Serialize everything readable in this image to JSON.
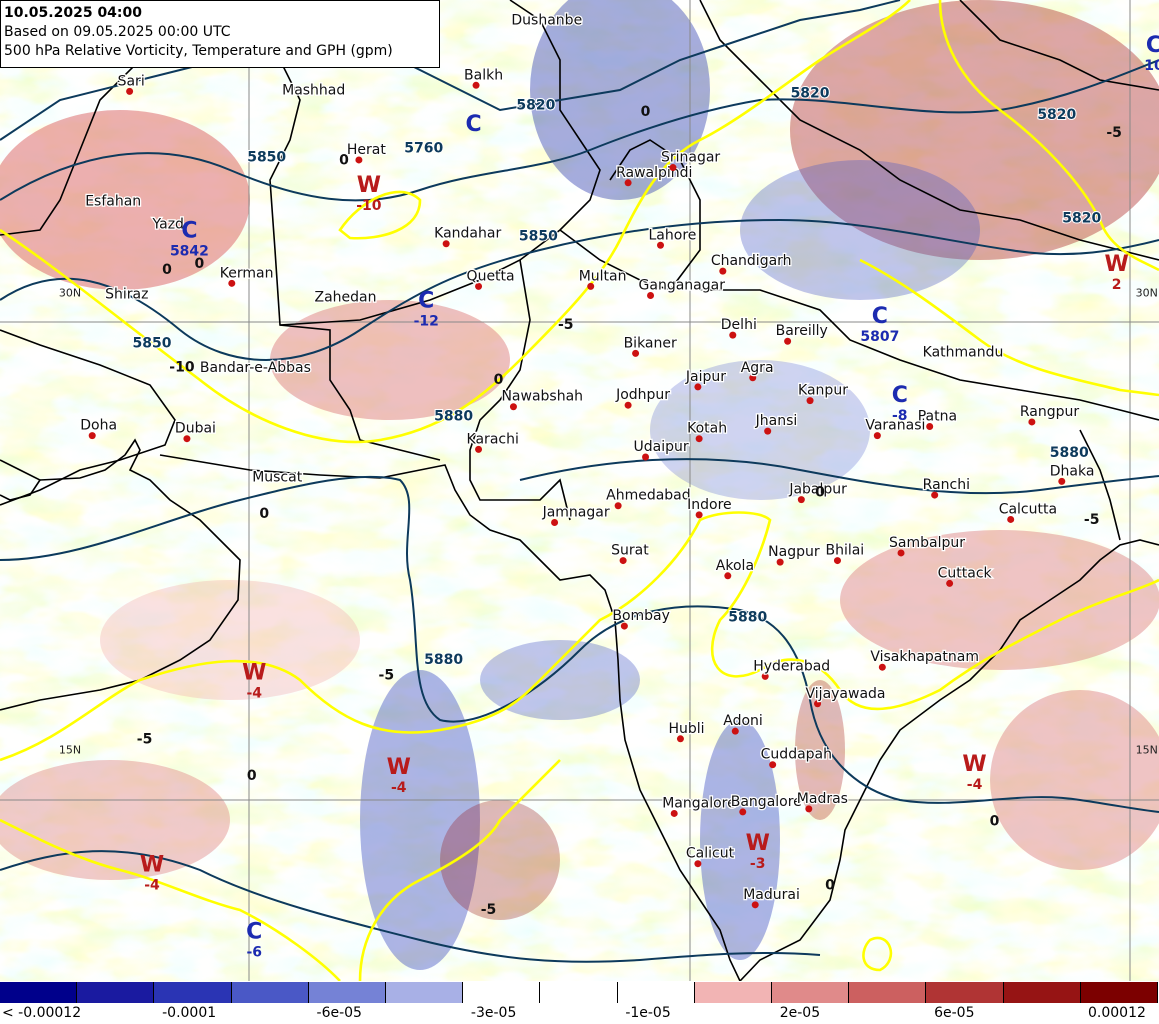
{
  "header": {
    "title": "10.05.2025 04:00",
    "based_on": "Based on 09.05.2025 00:00 UTC",
    "product": "500 hPa Relative Vorticity, Temperature and GPH (gpm)"
  },
  "colors": {
    "land_border": "#000000",
    "gph_contour": "#0d3a5c",
    "temperature_contour": "#ffff00",
    "city_marker": "#cc1111",
    "high_pressure_label": "#b81b1b",
    "low_pressure_label": "#1c2bb0",
    "grid_line": "#888888"
  },
  "cities": [
    {
      "name": "Dushanbe",
      "lon": 68.8,
      "lat": 38.6,
      "dot": false
    },
    {
      "name": "Sari",
      "lon": 53.0,
      "lat": 36.6,
      "dot": true
    },
    {
      "name": "Mashhad",
      "lon": 59.6,
      "lat": 36.3,
      "dot": false
    },
    {
      "name": "Balkh",
      "lon": 66.9,
      "lat": 36.8,
      "dot": true
    },
    {
      "name": "Herat",
      "lon": 62.2,
      "lat": 34.35,
      "dot": true
    },
    {
      "name": "Esfahan",
      "lon": 51.7,
      "lat": 32.65,
      "dot": false
    },
    {
      "name": "Yazd",
      "lon": 54.4,
      "lat": 31.9,
      "dot": false
    },
    {
      "name": "Kandahar",
      "lon": 65.7,
      "lat": 31.6,
      "dot": true
    },
    {
      "name": "Quetta",
      "lon": 67.0,
      "lat": 30.2,
      "dot": true
    },
    {
      "name": "Kerman",
      "lon": 57.1,
      "lat": 30.3,
      "dot": true
    },
    {
      "name": "Zahedan",
      "lon": 60.9,
      "lat": 29.5,
      "dot": false
    },
    {
      "name": "Shiraz",
      "lon": 52.5,
      "lat": 29.6,
      "dot": false
    },
    {
      "name": "Rawalpindi",
      "lon": 73.0,
      "lat": 33.6,
      "dot": true
    },
    {
      "name": "Srinagar",
      "lon": 74.8,
      "lat": 34.1,
      "dot": true
    },
    {
      "name": "Lahore",
      "lon": 74.3,
      "lat": 31.55,
      "dot": true
    },
    {
      "name": "Chandigarh",
      "lon": 76.8,
      "lat": 30.7,
      "dot": true
    },
    {
      "name": "Multan",
      "lon": 71.5,
      "lat": 30.2,
      "dot": true
    },
    {
      "name": "Ganganagar",
      "lon": 73.9,
      "lat": 29.9,
      "dot": true
    },
    {
      "name": "Bikaner",
      "lon": 73.3,
      "lat": 28.0,
      "dot": true
    },
    {
      "name": "Delhi",
      "lon": 77.2,
      "lat": 28.6,
      "dot": true
    },
    {
      "name": "Bareilly",
      "lon": 79.4,
      "lat": 28.4,
      "dot": true
    },
    {
      "name": "Kathmandu",
      "lon": 85.3,
      "lat": 27.7,
      "dot": false
    },
    {
      "name": "Bandar-e-Abbas",
      "lon": 56.3,
      "lat": 27.2,
      "dot": false
    },
    {
      "name": "Jaipur",
      "lon": 75.8,
      "lat": 26.9,
      "dot": true
    },
    {
      "name": "Agra",
      "lon": 78.0,
      "lat": 27.2,
      "dot": true
    },
    {
      "name": "Kanpur",
      "lon": 80.3,
      "lat": 26.45,
      "dot": true
    },
    {
      "name": "Nawabshah",
      "lon": 68.4,
      "lat": 26.25,
      "dot": true
    },
    {
      "name": "Jodhpur",
      "lon": 73.0,
      "lat": 26.3,
      "dot": true
    },
    {
      "name": "Doha",
      "lon": 51.5,
      "lat": 25.3,
      "dot": true
    },
    {
      "name": "Dubai",
      "lon": 55.3,
      "lat": 25.2,
      "dot": true
    },
    {
      "name": "Patna",
      "lon": 85.1,
      "lat": 25.6,
      "dot": true
    },
    {
      "name": "Rangpur",
      "lon": 89.2,
      "lat": 25.75,
      "dot": true
    },
    {
      "name": "Jhansi",
      "lon": 78.6,
      "lat": 25.45,
      "dot": true
    },
    {
      "name": "Kotah",
      "lon": 75.85,
      "lat": 25.2,
      "dot": true
    },
    {
      "name": "Varanasi",
      "lon": 83.0,
      "lat": 25.3,
      "dot": true
    },
    {
      "name": "Karachi",
      "lon": 67.0,
      "lat": 24.85,
      "dot": true
    },
    {
      "name": "Udaipur",
      "lon": 73.7,
      "lat": 24.6,
      "dot": true
    },
    {
      "name": "Dhaka",
      "lon": 90.4,
      "lat": 23.8,
      "dot": true
    },
    {
      "name": "Muscat",
      "lon": 58.4,
      "lat": 23.6,
      "dot": false
    },
    {
      "name": "Jabalpur",
      "lon": 79.95,
      "lat": 23.2,
      "dot": true
    },
    {
      "name": "Ranchi",
      "lon": 85.3,
      "lat": 23.35,
      "dot": true
    },
    {
      "name": "Ahmedabad",
      "lon": 72.6,
      "lat": 23.0,
      "dot": true
    },
    {
      "name": "Indore",
      "lon": 75.85,
      "lat": 22.7,
      "dot": true
    },
    {
      "name": "Calcutta",
      "lon": 88.35,
      "lat": 22.55,
      "dot": true
    },
    {
      "name": "Jamnagar",
      "lon": 70.05,
      "lat": 22.45,
      "dot": true
    },
    {
      "name": "Sambalpur",
      "lon": 83.95,
      "lat": 21.45,
      "dot": true
    },
    {
      "name": "Surat",
      "lon": 72.8,
      "lat": 21.2,
      "dot": true
    },
    {
      "name": "Nagpur",
      "lon": 79.1,
      "lat": 21.15,
      "dot": true
    },
    {
      "name": "Bhilai",
      "lon": 81.4,
      "lat": 21.2,
      "dot": true
    },
    {
      "name": "Akola",
      "lon": 77.0,
      "lat": 20.7,
      "dot": true
    },
    {
      "name": "Cuttack",
      "lon": 85.9,
      "lat": 20.45,
      "dot": true
    },
    {
      "name": "Bombay",
      "lon": 72.85,
      "lat": 19.05,
      "dot": true
    },
    {
      "name": "Hyderabad",
      "lon": 78.5,
      "lat": 17.4,
      "dot": true
    },
    {
      "name": "Visakhapatnam",
      "lon": 83.2,
      "lat": 17.7,
      "dot": true
    },
    {
      "name": "Vijayawada",
      "lon": 80.6,
      "lat": 16.5,
      "dot": true
    },
    {
      "name": "Adoni",
      "lon": 77.3,
      "lat": 15.6,
      "dot": true
    },
    {
      "name": "Hubli",
      "lon": 75.1,
      "lat": 15.35,
      "dot": true
    },
    {
      "name": "Cuddapah",
      "lon": 78.8,
      "lat": 14.5,
      "dot": true
    },
    {
      "name": "Mangalore",
      "lon": 74.85,
      "lat": 12.9,
      "dot": true
    },
    {
      "name": "Bangalore",
      "lon": 77.6,
      "lat": 12.95,
      "dot": true
    },
    {
      "name": "Madras",
      "lon": 80.25,
      "lat": 13.05,
      "dot": true
    },
    {
      "name": "Calicut",
      "lon": 75.8,
      "lat": 11.25,
      "dot": true
    },
    {
      "name": "Madurai",
      "lon": 78.1,
      "lat": 9.9,
      "dot": true
    }
  ],
  "grid_labels": [
    {
      "text": "30N",
      "lon": 50.0,
      "lat": 30.0
    },
    {
      "text": "15N",
      "lon": 50.0,
      "lat": 15.0
    },
    {
      "text": "30N",
      "lon": 93.2,
      "lat": 30.0
    },
    {
      "text": "15N",
      "lon": 93.2,
      "lat": 15.0
    }
  ],
  "pressure_centers": [
    {
      "symbol": "C",
      "value": "",
      "lon": 66.8,
      "lat": 35.3,
      "kind": "low"
    },
    {
      "symbol": "C",
      "value": "5842",
      "lon": 55.4,
      "lat": 31.8,
      "kind": "low"
    },
    {
      "symbol": "W",
      "value": "-10",
      "lon": 62.6,
      "lat": 33.3,
      "kind": "high"
    },
    {
      "symbol": "C",
      "value": "-12",
      "lon": 64.9,
      "lat": 29.5,
      "kind": "low"
    },
    {
      "symbol": "C",
      "value": "-8",
      "lon": 83.9,
      "lat": 26.4,
      "kind": "low"
    },
    {
      "symbol": "C",
      "value": "5807",
      "lon": 83.1,
      "lat": 29.0,
      "kind": "low"
    },
    {
      "symbol": "W",
      "value": "2",
      "lon": 92.6,
      "lat": 30.7,
      "kind": "high"
    },
    {
      "symbol": "C",
      "value": "10",
      "lon": 94.1,
      "lat": 37.9,
      "kind": "low"
    },
    {
      "symbol": "W",
      "value": "-4",
      "lon": 58.0,
      "lat": 17.3,
      "kind": "high"
    },
    {
      "symbol": "W",
      "value": "-4",
      "lon": 63.8,
      "lat": 14.2,
      "kind": "high"
    },
    {
      "symbol": "W",
      "value": "-4",
      "lon": 53.9,
      "lat": 11.0,
      "kind": "high"
    },
    {
      "symbol": "W",
      "value": "-3",
      "lon": 78.2,
      "lat": 11.7,
      "kind": "high"
    },
    {
      "symbol": "W",
      "value": "-4",
      "lon": 86.9,
      "lat": 14.3,
      "kind": "high"
    },
    {
      "symbol": "C",
      "value": "-6",
      "lon": 58.0,
      "lat": 8.8,
      "kind": "low"
    }
  ],
  "contour_labels": [
    {
      "text": "5760",
      "lon": 64.8,
      "lat": 34.6,
      "kind": "gph"
    },
    {
      "text": "5820",
      "lon": 69.3,
      "lat": 36.0,
      "kind": "gph"
    },
    {
      "text": "5820",
      "lon": 80.3,
      "lat": 36.4,
      "kind": "gph"
    },
    {
      "text": "5820",
      "lon": 90.2,
      "lat": 35.7,
      "kind": "gph"
    },
    {
      "text": "5820",
      "lon": 91.2,
      "lat": 32.3,
      "kind": "gph"
    },
    {
      "text": "5850",
      "lon": 58.5,
      "lat": 34.3,
      "kind": "gph"
    },
    {
      "text": "5850",
      "lon": 69.4,
      "lat": 31.7,
      "kind": "gph"
    },
    {
      "text": "5850",
      "lon": 53.9,
      "lat": 28.2,
      "kind": "gph"
    },
    {
      "text": "5880",
      "lon": 66.0,
      "lat": 25.8,
      "kind": "gph"
    },
    {
      "text": "5880",
      "lon": 90.7,
      "lat": 24.6,
      "kind": "gph"
    },
    {
      "text": "5880",
      "lon": 77.8,
      "lat": 19.2,
      "kind": "gph"
    },
    {
      "text": "5880",
      "lon": 65.6,
      "lat": 17.8,
      "kind": "gph"
    },
    {
      "text": "0",
      "lon": 61.6,
      "lat": 34.2,
      "kind": "temp"
    },
    {
      "text": "0",
      "lon": 73.7,
      "lat": 35.8,
      "kind": "temp"
    },
    {
      "text": "0",
      "lon": 55.8,
      "lat": 30.8,
      "kind": "temp"
    },
    {
      "text": "0",
      "lon": 54.5,
      "lat": 30.6,
      "kind": "temp"
    },
    {
      "text": "0",
      "lon": 67.8,
      "lat": 27.0,
      "kind": "temp"
    },
    {
      "text": "0",
      "lon": 58.4,
      "lat": 22.6,
      "kind": "temp"
    },
    {
      "text": "0",
      "lon": 80.7,
      "lat": 23.3,
      "kind": "temp"
    },
    {
      "text": "0",
      "lon": 57.9,
      "lat": 14.0,
      "kind": "temp"
    },
    {
      "text": "0",
      "lon": 81.1,
      "lat": 10.4,
      "kind": "temp"
    },
    {
      "text": "0",
      "lon": 87.7,
      "lat": 12.5,
      "kind": "temp"
    },
    {
      "text": "-10",
      "lon": 55.1,
      "lat": 27.4,
      "kind": "temp"
    },
    {
      "text": "-5",
      "lon": 70.5,
      "lat": 28.8,
      "kind": "temp"
    },
    {
      "text": "-5",
      "lon": 92.5,
      "lat": 35.1,
      "kind": "temp"
    },
    {
      "text": "-5",
      "lon": 63.3,
      "lat": 17.3,
      "kind": "temp"
    },
    {
      "text": "-5",
      "lon": 67.4,
      "lat": 9.6,
      "kind": "temp"
    },
    {
      "text": "-5",
      "lon": 53.6,
      "lat": 15.2,
      "kind": "temp"
    },
    {
      "text": "-5",
      "lon": 91.6,
      "lat": 22.4,
      "kind": "temp"
    }
  ],
  "colorbar": {
    "colors": [
      "#00008b",
      "#1a1aa0",
      "#2a34b4",
      "#4a58c6",
      "#7582d6",
      "#a8b0e6",
      "#ffffff",
      "#ffffff",
      "#ffffff",
      "#f2b4b4",
      "#e08a8a",
      "#cc6060",
      "#b03434",
      "#961414",
      "#7c0000"
    ],
    "labels": [
      "< -0.00012",
      "-0.0001",
      "-6e-05",
      "-3e-05",
      "-1e-05",
      "2e-05",
      "6e-05",
      "0.00012"
    ]
  }
}
